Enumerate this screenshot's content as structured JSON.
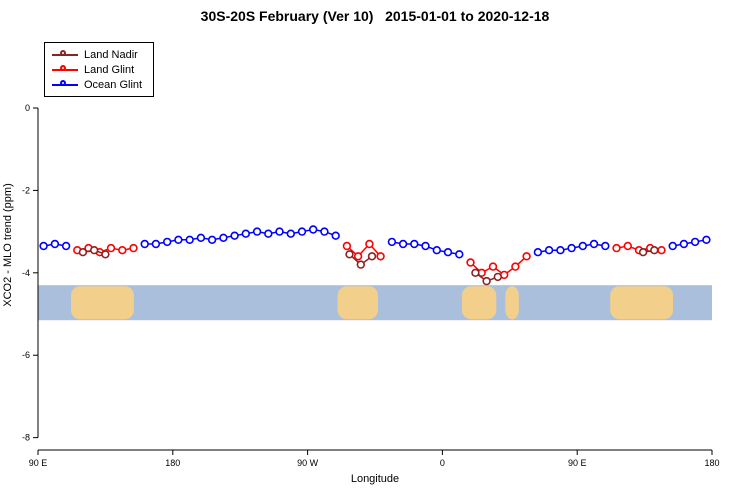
{
  "chart_data": {
    "type": "line",
    "title": "30S-20S February (Ver 10)   2015-01-01 to 2020-12-18",
    "xlabel": "Longitude",
    "ylabel": "XCO2 - MLO trend (ppm)",
    "legend_position": "top-left",
    "grid": false,
    "x_axis": {
      "description": "Longitude axis starting at 90 E and wrapping eastward over 450 degrees",
      "range_deg": [
        0,
        450
      ],
      "ticks": [
        {
          "offset": 0,
          "label": "90 E"
        },
        {
          "offset": 90,
          "label": "180"
        },
        {
          "offset": 180,
          "label": "90 W"
        },
        {
          "offset": 270,
          "label": "0"
        },
        {
          "offset": 360,
          "label": "90 E"
        },
        {
          "offset": 450,
          "label": "180"
        }
      ]
    },
    "y_axis": {
      "range": [
        -8.3,
        1.65
      ],
      "ticks": [
        {
          "value": 0,
          "label": "0"
        },
        {
          "value": -2,
          "label": "-2"
        },
        {
          "value": -4,
          "label": "-4"
        },
        {
          "value": -6,
          "label": "-6"
        },
        {
          "value": -8,
          "label": "-8"
        }
      ]
    },
    "series": [
      {
        "name": "Land Nadir",
        "color": "#8B2323",
        "marker": "open-circle",
        "segments": [
          [
            [
              30,
              -3.5
            ],
            [
              37.5,
              -3.45
            ],
            [
              45,
              -3.55
            ]
          ],
          [
            [
              208,
              -3.55
            ],
            [
              215.5,
              -3.8
            ],
            [
              223,
              -3.6
            ]
          ],
          [
            [
              292,
              -4.0
            ],
            [
              299.5,
              -4.2
            ],
            [
              307,
              -4.1
            ]
          ],
          [
            [
              404,
              -3.5
            ],
            [
              411.5,
              -3.45
            ]
          ]
        ]
      },
      {
        "name": "Land Glint",
        "color": "#FF0000",
        "marker": "open-circle",
        "segments": [
          [
            [
              26.25,
              -3.45
            ],
            [
              33.75,
              -3.4
            ],
            [
              41.25,
              -3.5
            ],
            [
              48.75,
              -3.4
            ],
            [
              56.25,
              -3.45
            ],
            [
              63.75,
              -3.4
            ]
          ],
          [
            [
              206.25,
              -3.35
            ],
            [
              213.75,
              -3.6
            ],
            [
              221.25,
              -3.3
            ],
            [
              228.75,
              -3.6
            ]
          ],
          [
            [
              288.75,
              -3.75
            ],
            [
              296.25,
              -4.0
            ],
            [
              303.75,
              -3.85
            ],
            [
              311.25,
              -4.05
            ],
            [
              318.75,
              -3.85
            ],
            [
              326.25,
              -3.6
            ]
          ],
          [
            [
              386.25,
              -3.4
            ],
            [
              393.75,
              -3.35
            ],
            [
              401.25,
              -3.45
            ],
            [
              408.75,
              -3.4
            ],
            [
              416.25,
              -3.45
            ]
          ]
        ]
      },
      {
        "name": "Ocean Glint",
        "color": "#0000FF",
        "marker": "open-circle",
        "segments": [
          [
            [
              3.75,
              -3.35
            ],
            [
              11.25,
              -3.3
            ],
            [
              18.75,
              -3.35
            ]
          ],
          [
            [
              71.25,
              -3.3
            ],
            [
              78.75,
              -3.3
            ],
            [
              86.25,
              -3.25
            ],
            [
              93.75,
              -3.2
            ],
            [
              101.25,
              -3.2
            ],
            [
              108.75,
              -3.15
            ],
            [
              116.25,
              -3.2
            ],
            [
              123.75,
              -3.15
            ],
            [
              131.25,
              -3.1
            ],
            [
              138.75,
              -3.05
            ],
            [
              146.25,
              -3.0
            ],
            [
              153.75,
              -3.05
            ],
            [
              161.25,
              -3.0
            ],
            [
              168.75,
              -3.05
            ],
            [
              176.25,
              -3.0
            ],
            [
              183.75,
              -2.95
            ],
            [
              191.25,
              -3.0
            ],
            [
              198.75,
              -3.1
            ]
          ],
          [
            [
              236.25,
              -3.25
            ],
            [
              243.75,
              -3.3
            ],
            [
              251.25,
              -3.3
            ],
            [
              258.75,
              -3.35
            ],
            [
              266.25,
              -3.45
            ],
            [
              273.75,
              -3.5
            ],
            [
              281.25,
              -3.55
            ]
          ],
          [
            [
              333.75,
              -3.5
            ],
            [
              341.25,
              -3.45
            ],
            [
              348.75,
              -3.45
            ],
            [
              356.25,
              -3.4
            ],
            [
              363.75,
              -3.35
            ],
            [
              371.25,
              -3.3
            ],
            [
              378.75,
              -3.35
            ]
          ],
          [
            [
              423.75,
              -3.35
            ],
            [
              431.25,
              -3.3
            ],
            [
              438.75,
              -3.25
            ],
            [
              446.25,
              -3.2
            ]
          ]
        ]
      }
    ],
    "map_band": {
      "description": "30S-20S latitude strip map showing land (tan) and ocean (light blue) along longitude",
      "ocean_color": "#A9BFDC",
      "land_color": "#F2CF8B",
      "y_top_ppm": -4.3,
      "y_bottom_ppm": -5.15,
      "land_segments": [
        {
          "name": "Australia",
          "from": 22,
          "to": 64
        },
        {
          "name": "South America",
          "from": 200,
          "to": 227
        },
        {
          "name": "Southern Africa",
          "from": 283,
          "to": 306
        },
        {
          "name": "Madagascar",
          "from": 312,
          "to": 321
        },
        {
          "name": "Australia wrap",
          "from": 382,
          "to": 424
        }
      ]
    }
  }
}
